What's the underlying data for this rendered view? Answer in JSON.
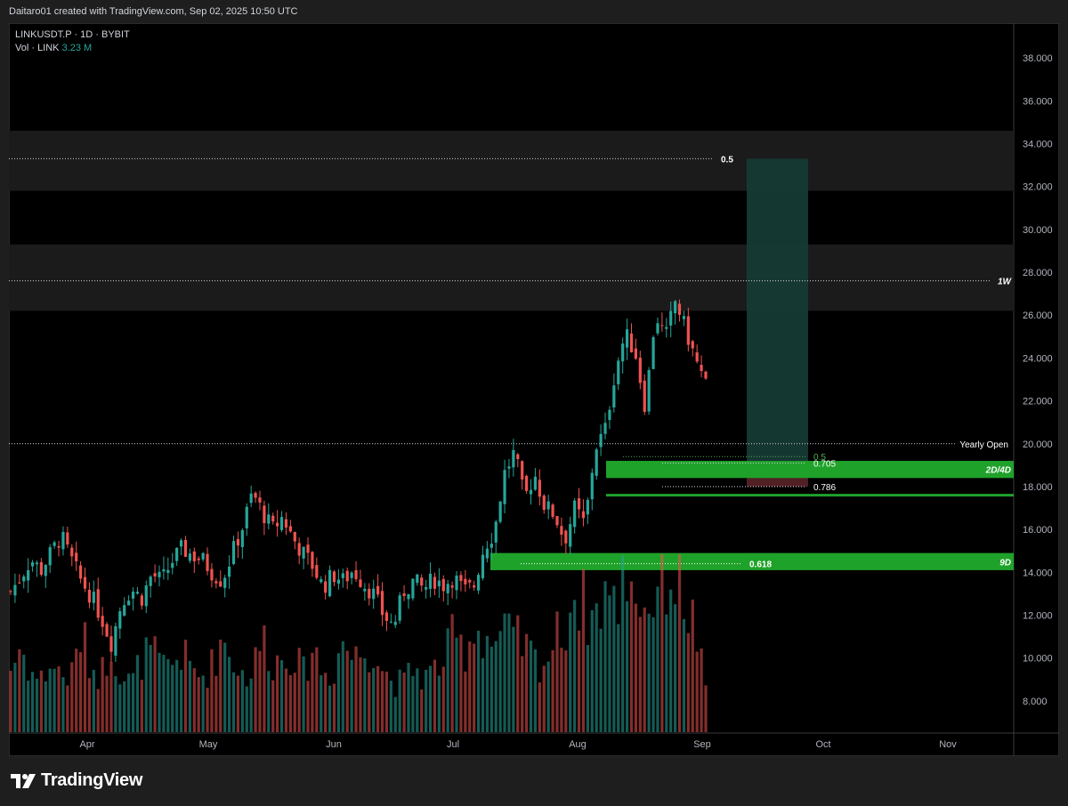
{
  "header": {
    "credit": "Daitaro01 created with TradingView.com, Sep 02, 2025 10:50 UTC"
  },
  "legend": {
    "symbol_line": "LINKUSDT.P · 1D · BYBIT",
    "vol_label": "Vol · LINK",
    "vol_value": "3.23 M"
  },
  "brand": {
    "name": "TradingView"
  },
  "colors": {
    "up": "#26a69a",
    "down": "#ef5350",
    "zone_green": "#1fa22a",
    "zone_grey": "#1b1b1b",
    "target_box": "#163a35"
  },
  "chart_data": {
    "type": "candlestick",
    "symbol": "LINKUSDT.P",
    "interval": "1D",
    "exchange": "BYBIT",
    "ylim": [
      6.5,
      39.5
    ],
    "y_ticks": [
      "38.000",
      "36.000",
      "34.000",
      "32.000",
      "30.000",
      "28.000",
      "26.000",
      "24.000",
      "22.000",
      "20.000",
      "18.000",
      "16.000",
      "14.000",
      "12.000",
      "10.000",
      "8.000"
    ],
    "x_ticks": [
      "Apr",
      "May",
      "Jun",
      "Jul",
      "Aug",
      "Sep",
      "Oct",
      "Nov"
    ],
    "price_path": [
      13.1,
      13.8,
      14.6,
      14.1,
      14.9,
      15.7,
      14.6,
      13.6,
      12.9,
      11.9,
      10.7,
      12.6,
      13.2,
      12.8,
      13.9,
      13.6,
      14.5,
      15.1,
      14.8,
      14.6,
      14.0,
      13.6,
      14.9,
      16.1,
      17.7,
      16.8,
      16.0,
      16.6,
      15.6,
      14.9,
      14.3,
      13.3,
      13.9,
      13.6,
      14.1,
      13.5,
      13.0,
      12.0,
      11.5,
      13.1,
      13.6,
      13.2,
      13.7,
      13.4,
      13.8,
      13.1,
      13.4,
      15.2,
      15.9,
      18.6,
      19.6,
      17.4,
      18.6,
      17.1,
      16.7,
      15.5,
      17.0,
      16.2,
      19.8,
      20.6,
      23.4,
      25.1,
      24.3,
      21.7,
      26.1,
      24.9,
      26.7,
      25.3,
      23.9,
      22.7
    ],
    "volume_path": [
      3.4,
      4.6,
      3.2,
      2.8,
      3.7,
      3.1,
      2.9,
      5.3,
      3.5,
      3.1,
      4.8,
      3.0,
      2.6,
      3.9,
      4.3,
      3.4,
      3.7,
      4.2,
      3.3,
      3.0,
      3.6,
      5.1,
      4.0,
      3.1,
      3.2,
      5.2,
      3.8,
      3.9,
      4.5,
      3.0,
      4.7,
      3.1,
      3.2,
      5.0,
      3.9,
      4.4,
      4.6,
      3.3,
      2.7,
      2.6,
      3.5,
      2.9,
      3.3,
      3.9,
      5.1,
      4.3,
      5.6,
      5.3,
      4.7,
      5.2,
      5.0,
      4.6,
      3.9,
      3.7,
      4.9,
      5.7,
      7.5,
      6.7,
      6.1,
      7.8,
      6.4,
      8.9,
      7.8,
      6.4,
      7.7,
      8.6,
      8.2,
      6.9,
      5.5,
      2.0
    ],
    "series": [
      {
        "name": "LINKUSDT.P",
        "ohlc_summary": {
          "first_close": 13.0,
          "last_close": 22.7,
          "high": 27.8,
          "low": 10.6
        }
      },
      {
        "name": "Vol · LINK",
        "last_value": "3.23 M"
      }
    ],
    "annotations": {
      "yearly_open": {
        "label": "Yearly Open",
        "price": 20.0
      },
      "fib_top_050": {
        "label": "0.5",
        "price": 33.3
      },
      "fib_050": {
        "label": "0.5",
        "price": 19.4
      },
      "fib_0705": {
        "label": "0.705",
        "price": 19.1
      },
      "fib_0786": {
        "label": "0.786",
        "price": 18.0
      },
      "fib_0618": {
        "label": "0.618",
        "price": 14.4
      },
      "zone_2d4d": {
        "label": "2D/4D",
        "top": 19.2,
        "bottom": 18.4
      },
      "zone_9d": {
        "label": "9D",
        "top": 14.9,
        "bottom": 14.1
      },
      "level_1w": {
        "label": "1W",
        "price": 27.6
      },
      "grey_zone_upper": {
        "top": 34.6,
        "bottom": 31.8
      },
      "grey_zone_lower": {
        "top": 29.3,
        "bottom": 26.2
      },
      "target_box": {
        "top": 33.3,
        "entry": 19.2,
        "stop": 18.0
      }
    }
  }
}
